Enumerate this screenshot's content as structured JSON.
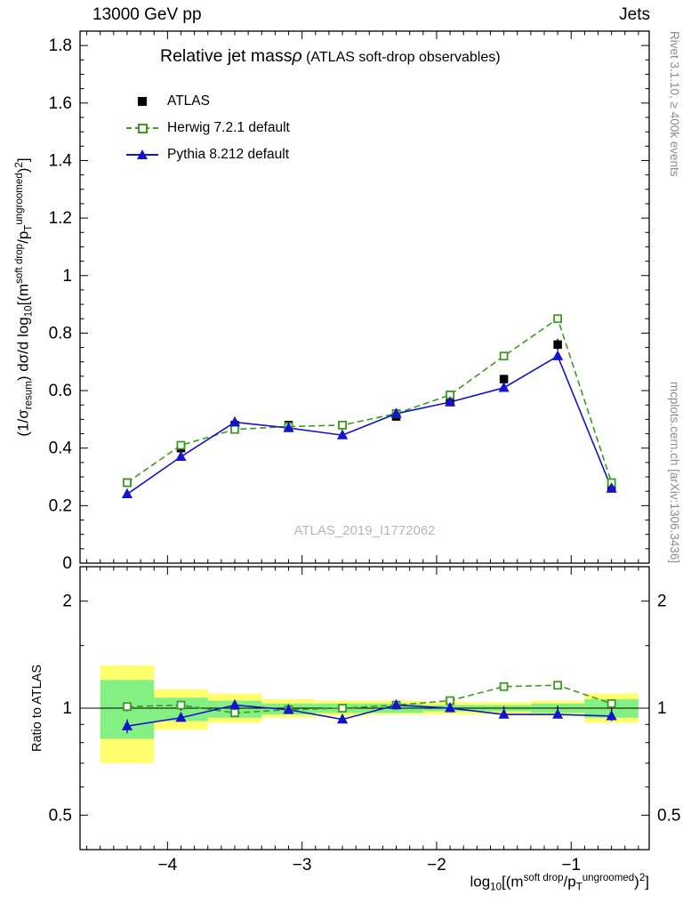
{
  "header": {
    "left": "13000 GeV pp",
    "right": "Jets"
  },
  "title": {
    "main": "Relative jet mass",
    "rho": "ρ",
    "paren": " (ATLAS soft-drop observables)"
  },
  "legend": [
    {
      "label": "ATLAS",
      "marker": "black-filled-square"
    },
    {
      "label": "Herwig 7.2.1 default",
      "marker": "green-open-square-dashed-line"
    },
    {
      "label": "Pythia 8.212 default",
      "marker": "blue-filled-triangle-solid-line"
    }
  ],
  "watermark": "ATLAS_2019_I1772062",
  "side": {
    "top": "Rivet 3.1.10, ≥ 400k events",
    "bottom": "mcplots.cern.ch [arXiv:1306.3436]"
  },
  "axes": {
    "ratio_label": "Ratio to ATLAS",
    "ylabel_segments": [
      {
        "t": "(1/σ"
      },
      {
        "t": "resum",
        "s": "sub"
      },
      {
        "t": ") dσ/d log"
      },
      {
        "t": "10",
        "s": "sub"
      },
      {
        "t": "[(m"
      },
      {
        "t": "soft drop",
        "s": "sup"
      },
      {
        "t": "/p"
      },
      {
        "t": "T",
        "s": "sub"
      },
      {
        "t": "ungroomed",
        "s": "sup"
      },
      {
        "t": ")"
      },
      {
        "t": "2",
        "s": "sup"
      },
      {
        "t": "]"
      }
    ],
    "xlabel_segments": [
      {
        "t": "log"
      },
      {
        "t": "10",
        "s": "sub"
      },
      {
        "t": "[(m"
      },
      {
        "t": "soft drop",
        "s": "sup"
      },
      {
        "t": "/p"
      },
      {
        "t": "T",
        "s": "sub"
      },
      {
        "t": "ungroomed",
        "s": "sup"
      },
      {
        "t": ")"
      },
      {
        "t": "2",
        "s": "sup"
      },
      {
        "t": "]"
      }
    ]
  },
  "colors": {
    "atlas": "#000000",
    "herwig": "#3c9b1e",
    "pythia": "#1414cc",
    "band_yellow": "#ffff6e",
    "band_green": "#84f084",
    "gray_text": "#8c8c8c",
    "watermark_gray": "#b6b6b6"
  },
  "chart_data": {
    "type": "line",
    "title": "Relative jet mass ρ (ATLAS soft-drop observables)",
    "xlabel": "log_10[(m^soft drop/p_T^ungroomed)^2]",
    "ylabel": "(1/σ_resum) dσ/d log_10[(m^soft drop/p_T^ungroomed)^2]",
    "x": [
      -4.3,
      -3.9,
      -3.5,
      -3.1,
      -2.7,
      -2.3,
      -1.9,
      -1.5,
      -1.1,
      -0.7
    ],
    "bin_edges": [
      -4.5,
      -4.1,
      -3.7,
      -3.3,
      -2.9,
      -2.5,
      -2.1,
      -1.7,
      -1.3,
      -0.9,
      -0.5
    ],
    "series": [
      {
        "name": "ATLAS",
        "values": [
          0.28,
          0.4,
          0.48,
          0.48,
          0.48,
          0.51,
          0.56,
          0.64,
          0.76,
          0.26
        ],
        "errors": [
          0.01,
          0.01,
          0.01,
          0.01,
          0.01,
          0.01,
          0.01,
          0.015,
          0.02,
          0.015
        ]
      },
      {
        "name": "Herwig 7.2.1 default",
        "values": [
          0.28,
          0.41,
          0.465,
          0.475,
          0.48,
          0.52,
          0.585,
          0.72,
          0.85,
          0.28
        ],
        "errors": [
          0.006,
          0.006,
          0.006,
          0.006,
          0.006,
          0.006,
          0.006,
          0.008,
          0.01,
          0.008
        ]
      },
      {
        "name": "Pythia 8.212 default",
        "values": [
          0.24,
          0.37,
          0.49,
          0.47,
          0.445,
          0.52,
          0.56,
          0.61,
          0.72,
          0.26
        ],
        "errors": [
          0.012,
          0.01,
          0.009,
          0.009,
          0.009,
          0.009,
          0.009,
          0.01,
          0.012,
          0.012
        ]
      }
    ],
    "ratio": {
      "herwig": [
        1.01,
        1.02,
        0.97,
        0.99,
        1.0,
        1.02,
        1.05,
        1.15,
        1.16,
        1.03
      ],
      "herwig_err": [
        0.012,
        0.01,
        0.01,
        0.01,
        0.01,
        0.01,
        0.01,
        0.012,
        0.012,
        0.02
      ],
      "pythia": [
        0.89,
        0.94,
        1.02,
        0.99,
        0.93,
        1.02,
        1.0,
        0.96,
        0.96,
        0.95
      ],
      "pythia_err": [
        0.04,
        0.025,
        0.02,
        0.015,
        0.02,
        0.015,
        0.015,
        0.015,
        0.015,
        0.03
      ],
      "atlas_err": [
        0.02,
        0.015,
        0.012,
        0.01,
        0.01,
        0.01,
        0.01,
        0.012,
        0.015,
        0.04
      ],
      "bands": [
        {
          "yellow": [
            0.7,
            1.32
          ],
          "green": [
            0.82,
            1.2
          ]
        },
        {
          "yellow": [
            0.87,
            1.13
          ],
          "green": [
            0.92,
            1.07
          ]
        },
        {
          "yellow": [
            0.91,
            1.1
          ],
          "green": [
            0.94,
            1.05
          ]
        },
        {
          "yellow": [
            0.94,
            1.06
          ],
          "green": [
            0.96,
            1.03
          ]
        },
        {
          "yellow": [
            0.95,
            1.05
          ],
          "green": [
            0.97,
            1.03
          ]
        },
        {
          "yellow": [
            0.96,
            1.05
          ],
          "green": [
            0.97,
            1.03
          ]
        },
        {
          "yellow": [
            0.96,
            1.04
          ],
          "green": [
            0.98,
            1.02
          ]
        },
        {
          "yellow": [
            0.96,
            1.04
          ],
          "green": [
            0.98,
            1.02
          ]
        },
        {
          "yellow": [
            0.95,
            1.05
          ],
          "green": [
            0.97,
            1.03
          ]
        },
        {
          "yellow": [
            0.91,
            1.1
          ],
          "green": [
            0.94,
            1.06
          ]
        }
      ]
    },
    "axes": {
      "x": {
        "min": -4.65,
        "max": -0.42,
        "ticks": [
          -4,
          -3,
          -2,
          -1
        ],
        "minor_step": 0.1
      },
      "y": {
        "min": 0,
        "max": 1.85,
        "ticks": [
          0,
          0.2,
          0.4,
          0.6,
          0.8,
          1,
          1.2,
          1.4,
          1.6,
          1.8
        ],
        "minor_step": 0.05
      },
      "ratio": {
        "scale": "log",
        "min": 0.4,
        "max": 2.5,
        "ticks": [
          0.5,
          1,
          2
        ],
        "minor_ticks": [
          0.6,
          0.7,
          0.8,
          0.9,
          1.5
        ]
      }
    }
  }
}
